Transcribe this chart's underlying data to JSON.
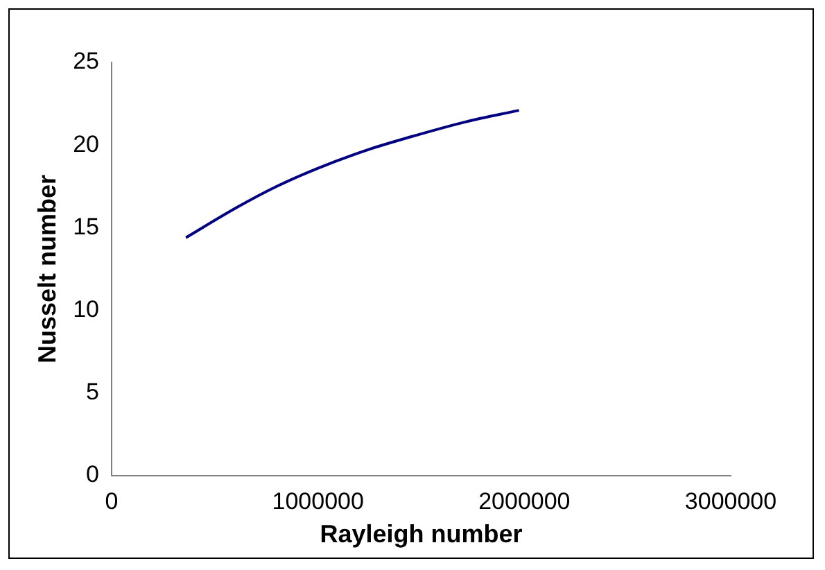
{
  "chart_data": {
    "type": "line",
    "xlabel": "Rayleigh number",
    "ylabel": "Nusselt number",
    "x": [
      360000,
      603000,
      800000,
      1000000,
      1238000,
      1450000,
      1714000,
      1974000
    ],
    "series": [
      {
        "color": "#000080",
        "values": [
          14.4,
          16.2,
          17.5,
          18.6,
          19.7,
          20.5,
          21.4,
          22.1
        ]
      }
    ],
    "xlim": [
      0,
      3000000
    ],
    "xticks": [
      0,
      1000000,
      2000000,
      3000000
    ],
    "ylim": [
      0,
      25
    ],
    "yticks": [
      0,
      5,
      10,
      15,
      20,
      25
    ],
    "grid": false,
    "legend": false,
    "marker": "none"
  }
}
